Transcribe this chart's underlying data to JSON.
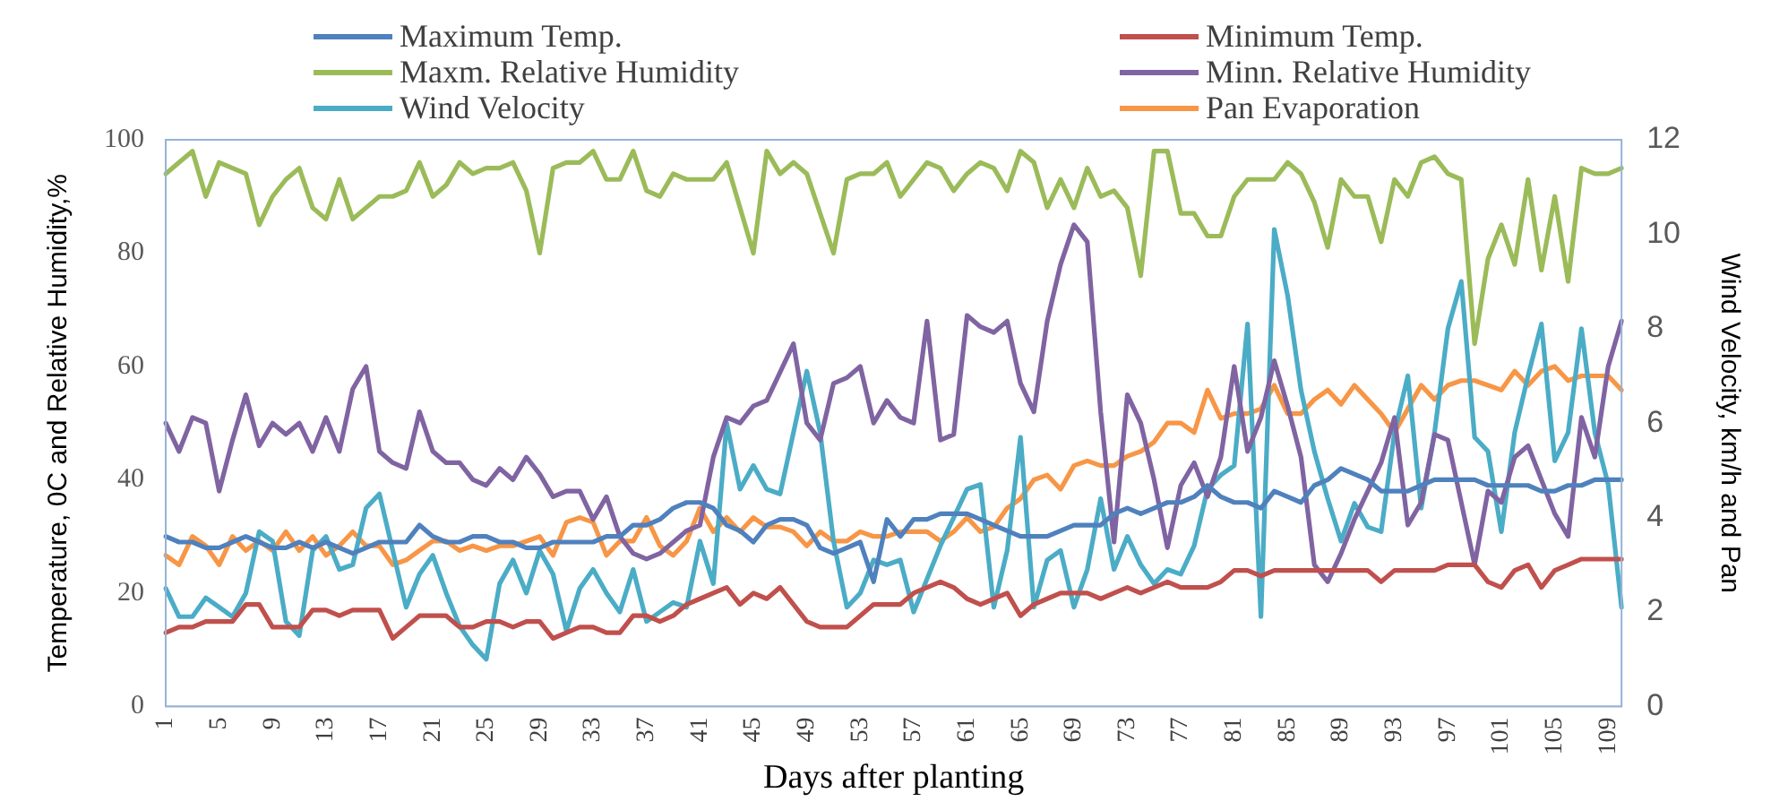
{
  "chart_data": {
    "type": "line",
    "xlabel": "Days after planting",
    "ylabel": "Temperature, 0C and Relative Humidity,%",
    "y2label": "Wind Velocity, km/h and Pan",
    "legend": "top",
    "ylim": [
      0,
      100
    ],
    "yticks": [
      0,
      20,
      40,
      60,
      80,
      100
    ],
    "y2lim": [
      0,
      12
    ],
    "y2ticks": [
      0,
      2,
      4,
      6,
      8,
      10,
      12
    ],
    "categories": [
      "1",
      null,
      null,
      null,
      "5",
      null,
      null,
      null,
      "9",
      null,
      null,
      null,
      "13",
      null,
      null,
      null,
      "17",
      null,
      null,
      null,
      "21",
      null,
      null,
      null,
      "25",
      null,
      null,
      null,
      "29",
      null,
      null,
      null,
      "33",
      null,
      null,
      null,
      "37",
      null,
      null,
      null,
      "41",
      null,
      null,
      null,
      "45",
      null,
      null,
      null,
      "49",
      null,
      null,
      null,
      "53",
      null,
      null,
      null,
      "57",
      null,
      null,
      null,
      "61",
      null,
      null,
      null,
      "65",
      null,
      null,
      null,
      "69",
      null,
      null,
      null,
      "73",
      null,
      null,
      null,
      "77",
      null,
      null,
      null,
      "81",
      null,
      null,
      null,
      "85",
      null,
      null,
      null,
      "89",
      null,
      null,
      null,
      "93",
      null,
      null,
      null,
      "97",
      null,
      null,
      null,
      "101",
      null,
      null,
      null,
      "105",
      null,
      null,
      null,
      "109",
      null
    ],
    "series": [
      {
        "name": "Maximum Temp.",
        "color": "#4f81bd",
        "values": [
          30,
          29,
          29,
          28,
          28,
          29,
          30,
          29,
          28,
          28,
          29,
          28,
          29,
          28,
          27,
          28,
          29,
          29,
          29,
          32,
          30,
          29,
          29,
          30,
          30,
          29,
          29,
          28,
          28,
          29,
          29,
          29,
          29,
          30,
          30,
          32,
          32,
          33,
          35,
          36,
          36,
          35,
          32,
          31,
          29,
          32,
          33,
          33,
          32,
          28,
          27,
          28,
          29,
          22,
          33,
          30,
          33,
          33,
          34,
          34,
          34,
          33,
          32,
          31,
          30,
          30,
          30,
          31,
          32,
          32,
          32,
          34,
          35,
          34,
          35,
          36,
          36,
          37,
          39,
          37,
          36,
          36,
          35,
          38,
          37,
          36,
          39,
          40,
          42,
          41,
          40,
          38,
          38,
          38,
          39,
          40,
          40,
          40,
          40,
          39,
          39,
          39,
          39,
          38,
          38,
          39,
          39,
          40,
          40,
          40
        ]
      },
      {
        "name": "Minimum Temp.",
        "color": "#c0504d",
        "values": [
          13,
          14,
          14,
          15,
          15,
          15,
          18,
          18,
          14,
          14,
          14,
          17,
          17,
          16,
          17,
          17,
          17,
          12,
          14,
          16,
          16,
          16,
          14,
          14,
          15,
          15,
          14,
          15,
          15,
          12,
          13,
          14,
          14,
          13,
          13,
          16,
          16,
          15,
          16,
          18,
          19,
          20,
          21,
          18,
          20,
          19,
          21,
          18,
          15,
          14,
          14,
          14,
          16,
          18,
          18,
          18,
          20,
          21,
          22,
          21,
          19,
          18,
          19,
          20,
          16,
          18,
          19,
          20,
          20,
          20,
          19,
          20,
          21,
          20,
          21,
          22,
          21,
          21,
          21,
          22,
          24,
          24,
          23,
          24,
          24,
          24,
          24,
          24,
          24,
          24,
          24,
          22,
          24,
          24,
          24,
          24,
          25,
          25,
          25,
          22,
          21,
          24,
          25,
          21,
          24,
          25,
          26,
          26,
          26,
          26
        ]
      },
      {
        "name": "Maxm. Relative Humidity",
        "color": "#9bbb59",
        "values": [
          94,
          96,
          98,
          90,
          96,
          95,
          94,
          85,
          90,
          93,
          95,
          88,
          86,
          93,
          86,
          88,
          90,
          90,
          91,
          96,
          90,
          92,
          96,
          94,
          95,
          95,
          96,
          91,
          80,
          95,
          96,
          96,
          98,
          93,
          93,
          98,
          91,
          90,
          94,
          93,
          93,
          93,
          96,
          88,
          80,
          98,
          94,
          96,
          94,
          87,
          80,
          93,
          94,
          94,
          96,
          90,
          93,
          96,
          95,
          91,
          94,
          96,
          95,
          91,
          98,
          96,
          88,
          93,
          88,
          95,
          90,
          91,
          88,
          76,
          98,
          98,
          87,
          87,
          83,
          83,
          90,
          93,
          93,
          93,
          96,
          94,
          89,
          81,
          93,
          90,
          90,
          82,
          93,
          90,
          96,
          97,
          94,
          93,
          64,
          79,
          85,
          78,
          93,
          77,
          90,
          75,
          95,
          94,
          94,
          95
        ]
      },
      {
        "name": "Minn. Relative Humidity",
        "color": "#8064a2",
        "values": [
          50,
          45,
          51,
          50,
          38,
          47,
          55,
          46,
          50,
          48,
          50,
          45,
          51,
          45,
          56,
          60,
          45,
          43,
          42,
          52,
          45,
          43,
          43,
          40,
          39,
          42,
          40,
          44,
          41,
          37,
          38,
          38,
          33,
          37,
          30,
          27,
          26,
          27,
          29,
          31,
          32,
          44,
          51,
          50,
          53,
          54,
          59,
          64,
          50,
          47,
          57,
          58,
          60,
          50,
          54,
          51,
          50,
          68,
          47,
          48,
          69,
          67,
          66,
          68,
          57,
          52,
          68,
          78,
          85,
          82,
          52,
          29,
          55,
          50,
          40,
          28,
          39,
          43,
          37,
          44,
          60,
          45,
          51,
          61,
          53,
          44,
          25,
          22,
          27,
          33,
          38,
          43,
          51,
          32,
          36,
          48,
          47,
          36,
          25,
          38,
          36,
          44,
          46,
          40,
          34,
          30,
          51,
          44,
          60,
          68
        ]
      },
      {
        "name": "Wind Velocity",
        "color": "#4bacc6",
        "axis": "y2",
        "values": [
          2.5,
          1.9,
          1.9,
          2.3,
          2.1,
          1.9,
          2.4,
          3.7,
          3.5,
          1.8,
          1.5,
          3.3,
          3.6,
          2.9,
          3.0,
          4.2,
          4.5,
          3.3,
          2.1,
          2.8,
          3.2,
          2.4,
          1.7,
          1.3,
          1.0,
          2.6,
          3.1,
          2.4,
          3.3,
          2.8,
          1.6,
          2.5,
          2.9,
          2.4,
          2.0,
          2.9,
          1.8,
          2.0,
          2.2,
          2.1,
          3.5,
          2.6,
          6.0,
          4.6,
          5.1,
          4.6,
          4.5,
          5.8,
          7.1,
          5.8,
          3.5,
          2.1,
          2.4,
          3.1,
          3.0,
          3.1,
          2.0,
          2.7,
          3.4,
          4.0,
          4.6,
          4.7,
          2.1,
          3.3,
          5.7,
          2.1,
          3.1,
          3.3,
          2.1,
          2.9,
          4.4,
          2.9,
          3.6,
          3.0,
          2.6,
          2.9,
          2.8,
          3.4,
          4.6,
          4.9,
          5.1,
          8.1,
          1.9,
          10.1,
          8.7,
          6.7,
          5.4,
          4.4,
          3.5,
          4.3,
          3.8,
          3.7,
          5.8,
          7.0,
          4.2,
          5.8,
          8.0,
          9.0,
          5.7,
          5.4,
          3.7,
          5.8,
          7.0,
          8.1,
          5.2,
          5.8,
          8.0,
          5.8,
          4.7,
          2.1
        ]
      },
      {
        "name": "Pan Evaporation",
        "color": "#f79646",
        "axis": "y2",
        "values": [
          3.2,
          3.0,
          3.6,
          3.4,
          3.0,
          3.6,
          3.3,
          3.5,
          3.3,
          3.7,
          3.3,
          3.6,
          3.2,
          3.4,
          3.7,
          3.4,
          3.4,
          3.0,
          3.1,
          3.3,
          3.5,
          3.5,
          3.3,
          3.4,
          3.3,
          3.4,
          3.4,
          3.5,
          3.6,
          3.2,
          3.9,
          4.0,
          3.9,
          3.2,
          3.5,
          3.5,
          4.0,
          3.4,
          3.2,
          3.5,
          4.2,
          3.7,
          4.0,
          3.7,
          4.0,
          3.8,
          3.8,
          3.7,
          3.4,
          3.7,
          3.5,
          3.5,
          3.7,
          3.6,
          3.6,
          3.7,
          3.7,
          3.7,
          3.5,
          3.7,
          4.0,
          3.7,
          3.8,
          4.2,
          4.4,
          4.8,
          4.9,
          4.6,
          5.1,
          5.2,
          5.1,
          5.1,
          5.3,
          5.4,
          5.6,
          6.0,
          6.0,
          5.8,
          6.7,
          6.1,
          6.2,
          6.2,
          6.3,
          6.8,
          6.2,
          6.2,
          6.5,
          6.7,
          6.4,
          6.8,
          6.5,
          6.2,
          5.8,
          6.3,
          6.8,
          6.5,
          6.8,
          6.9,
          6.9,
          6.8,
          6.7,
          7.1,
          6.8,
          7.1,
          7.2,
          6.9,
          7.0,
          7.0,
          7.0,
          6.7
        ]
      }
    ]
  }
}
